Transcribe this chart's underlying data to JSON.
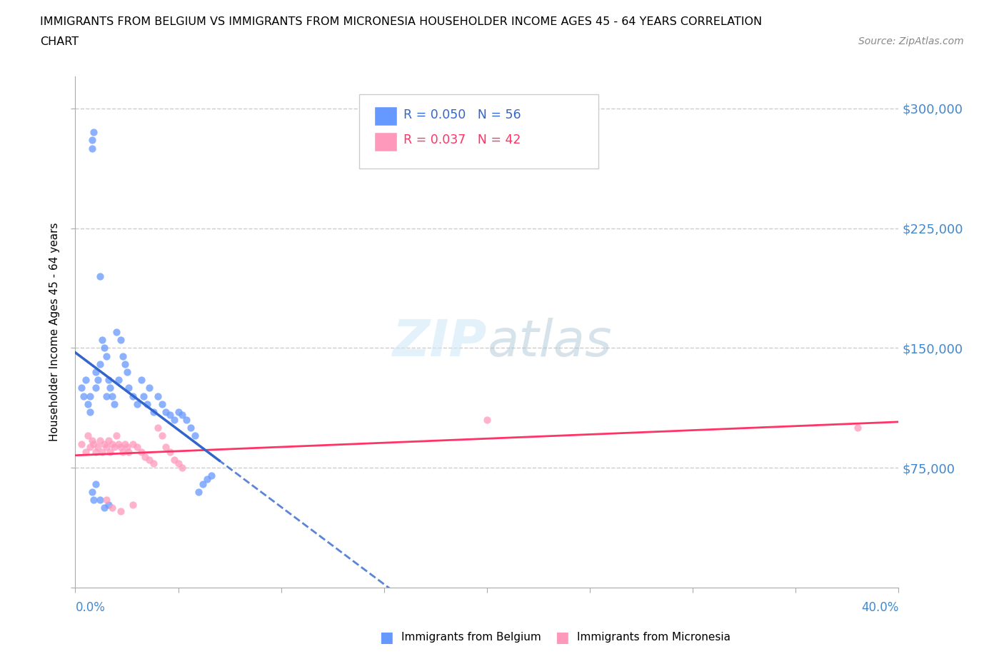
{
  "title_line1": "IMMIGRANTS FROM BELGIUM VS IMMIGRANTS FROM MICRONESIA HOUSEHOLDER INCOME AGES 45 - 64 YEARS CORRELATION",
  "title_line2": "CHART",
  "source": "Source: ZipAtlas.com",
  "ylabel": "Householder Income Ages 45 - 64 years",
  "xlim": [
    0.0,
    0.4
  ],
  "ylim": [
    0,
    320000
  ],
  "legend_belgium_r": "R = 0.050",
  "legend_belgium_n": "N = 56",
  "legend_micronesia_r": "R = 0.037",
  "legend_micronesia_n": "N = 42",
  "belgium_color": "#6699ff",
  "micronesia_color": "#ff99bb",
  "belgium_line_color": "#3366cc",
  "micronesia_line_color": "#ff3366",
  "grid_color": "#cccccc",
  "belgium_x": [
    0.003,
    0.004,
    0.005,
    0.006,
    0.007,
    0.007,
    0.008,
    0.008,
    0.009,
    0.01,
    0.01,
    0.011,
    0.012,
    0.012,
    0.013,
    0.014,
    0.015,
    0.015,
    0.016,
    0.017,
    0.018,
    0.019,
    0.02,
    0.021,
    0.022,
    0.023,
    0.024,
    0.025,
    0.026,
    0.028,
    0.03,
    0.032,
    0.033,
    0.035,
    0.036,
    0.038,
    0.04,
    0.042,
    0.044,
    0.046,
    0.048,
    0.05,
    0.052,
    0.054,
    0.056,
    0.058,
    0.06,
    0.062,
    0.064,
    0.066,
    0.008,
    0.009,
    0.01,
    0.012,
    0.014,
    0.016
  ],
  "belgium_y": [
    125000,
    120000,
    130000,
    115000,
    120000,
    110000,
    280000,
    275000,
    285000,
    135000,
    125000,
    130000,
    140000,
    195000,
    155000,
    150000,
    145000,
    120000,
    130000,
    125000,
    120000,
    115000,
    160000,
    130000,
    155000,
    145000,
    140000,
    135000,
    125000,
    120000,
    115000,
    130000,
    120000,
    115000,
    125000,
    110000,
    120000,
    115000,
    110000,
    108000,
    105000,
    110000,
    108000,
    105000,
    100000,
    95000,
    60000,
    65000,
    68000,
    70000,
    60000,
    55000,
    65000,
    55000,
    50000,
    52000
  ],
  "micronesia_x": [
    0.003,
    0.005,
    0.006,
    0.007,
    0.008,
    0.009,
    0.01,
    0.011,
    0.012,
    0.013,
    0.014,
    0.015,
    0.016,
    0.017,
    0.018,
    0.019,
    0.02,
    0.021,
    0.022,
    0.023,
    0.024,
    0.025,
    0.026,
    0.028,
    0.03,
    0.032,
    0.034,
    0.036,
    0.038,
    0.04,
    0.042,
    0.044,
    0.046,
    0.048,
    0.05,
    0.052,
    0.2,
    0.38,
    0.015,
    0.018,
    0.022,
    0.028
  ],
  "micronesia_y": [
    90000,
    85000,
    95000,
    88000,
    92000,
    90000,
    85000,
    88000,
    92000,
    85000,
    90000,
    88000,
    92000,
    85000,
    90000,
    88000,
    95000,
    90000,
    88000,
    85000,
    90000,
    88000,
    85000,
    90000,
    88000,
    85000,
    82000,
    80000,
    78000,
    100000,
    95000,
    88000,
    85000,
    80000,
    78000,
    75000,
    105000,
    100000,
    55000,
    50000,
    48000,
    52000
  ]
}
